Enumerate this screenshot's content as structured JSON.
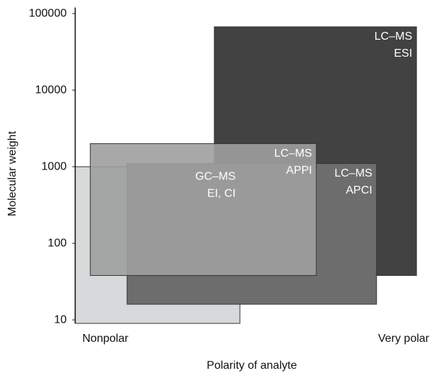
{
  "chart_data": {
    "type": "range",
    "x_label": "Polarity of analyte",
    "y_label": "Molecular weight",
    "xlim": [
      0,
      100
    ],
    "xticks": [
      {
        "value": 0,
        "label": "Nonpolar"
      },
      {
        "value": 100,
        "label": "Very polar"
      }
    ],
    "ylim": [
      9,
      120000
    ],
    "yticks": [
      10,
      100,
      1000,
      10000,
      100000
    ],
    "log_y": true,
    "series": [
      {
        "labels": [
          "GC–MS",
          "EI, CI"
        ],
        "color": "#d8d9da",
        "x": [
          0,
          47
        ],
        "y": [
          9,
          1000
        ]
      },
      {
        "labels": [
          "LC–MS",
          "ESI"
        ],
        "color": "#424242",
        "x": [
          39.7,
          97.4
        ],
        "y": [
          38,
          67000
        ]
      },
      {
        "labels": [
          "LC–MS",
          "APCI"
        ],
        "color": "#6d6d6d",
        "x": [
          14.8,
          86
        ],
        "y": [
          16,
          1100
        ]
      },
      {
        "labels": [
          "LC–MS",
          "APPI"
        ],
        "color": "#9e9e9e",
        "x": [
          4.3,
          68.8
        ],
        "y": [
          38,
          2000
        ]
      }
    ]
  }
}
